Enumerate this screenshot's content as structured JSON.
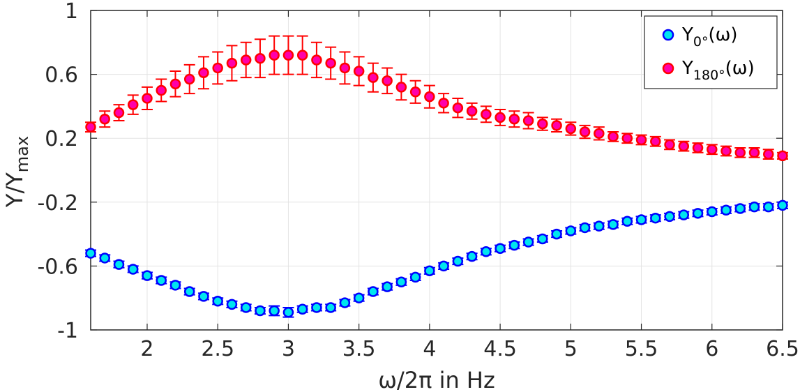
{
  "chart_data": {
    "type": "scatter",
    "xlabel": "ω/2π in Hz",
    "ylabel": "Y/Y",
    "ylabel_sub": "max",
    "xlim": [
      1.6,
      6.5
    ],
    "ylim": [
      -1,
      1
    ],
    "xticks": [
      2,
      2.5,
      3,
      3.5,
      4,
      4.5,
      5,
      5.5,
      6,
      6.5
    ],
    "xtick_labels": [
      "2",
      "2.5",
      "3",
      "3.5",
      "4",
      "4.5",
      "5",
      "5.5",
      "6",
      "6.5"
    ],
    "yticks": [
      -1,
      -0.6,
      -0.2,
      0.2,
      0.6,
      1
    ],
    "ytick_labels": [
      "-1",
      "-0.6",
      "-0.2",
      "0.2",
      "0.6",
      "1"
    ],
    "grid": true,
    "legend_position": "top-right",
    "x": [
      1.6,
      1.7,
      1.8,
      1.9,
      2.0,
      2.1,
      2.2,
      2.3,
      2.4,
      2.5,
      2.6,
      2.7,
      2.8,
      2.9,
      3.0,
      3.1,
      3.2,
      3.3,
      3.4,
      3.5,
      3.6,
      3.7,
      3.8,
      3.9,
      4.0,
      4.1,
      4.2,
      4.3,
      4.4,
      4.5,
      4.6,
      4.7,
      4.8,
      4.9,
      5.0,
      5.1,
      5.2,
      5.3,
      5.4,
      5.5,
      5.6,
      5.7,
      5.8,
      5.9,
      6.0,
      6.1,
      6.2,
      6.3,
      6.4,
      6.5
    ],
    "series": [
      {
        "name": "Y",
        "name_sub": "0°",
        "name_suffix": "(ω)",
        "marker_fill": "#00e5ee",
        "marker_edge": "#0000ff",
        "errorbar_color": "#0000ff",
        "values": [
          -0.52,
          -0.55,
          -0.59,
          -0.62,
          -0.66,
          -0.69,
          -0.72,
          -0.76,
          -0.79,
          -0.82,
          -0.84,
          -0.86,
          -0.88,
          -0.88,
          -0.89,
          -0.87,
          -0.86,
          -0.86,
          -0.83,
          -0.8,
          -0.76,
          -0.73,
          -0.7,
          -0.67,
          -0.63,
          -0.6,
          -0.57,
          -0.54,
          -0.51,
          -0.49,
          -0.47,
          -0.45,
          -0.43,
          -0.4,
          -0.38,
          -0.36,
          -0.35,
          -0.34,
          -0.32,
          -0.31,
          -0.3,
          -0.29,
          -0.28,
          -0.27,
          -0.26,
          -0.25,
          -0.24,
          -0.23,
          -0.23,
          -0.22
        ],
        "errors": [
          0.02,
          0.02,
          0.02,
          0.02,
          0.02,
          0.02,
          0.02,
          0.02,
          0.02,
          0.02,
          0.02,
          0.02,
          0.02,
          0.03,
          0.03,
          0.02,
          0.02,
          0.02,
          0.02,
          0.02,
          0.02,
          0.02,
          0.02,
          0.02,
          0.02,
          0.02,
          0.02,
          0.02,
          0.02,
          0.02,
          0.02,
          0.02,
          0.02,
          0.02,
          0.02,
          0.02,
          0.02,
          0.02,
          0.02,
          0.02,
          0.02,
          0.02,
          0.02,
          0.02,
          0.02,
          0.02,
          0.02,
          0.02,
          0.02,
          0.02
        ]
      },
      {
        "name": "Y",
        "name_sub": "180°",
        "name_suffix": "(ω)",
        "marker_fill": "#ff00aa",
        "marker_edge": "#ff0000",
        "errorbar_color": "#ff0000",
        "values": [
          0.27,
          0.32,
          0.36,
          0.41,
          0.45,
          0.5,
          0.54,
          0.57,
          0.61,
          0.64,
          0.67,
          0.69,
          0.7,
          0.72,
          0.72,
          0.72,
          0.69,
          0.67,
          0.64,
          0.62,
          0.58,
          0.56,
          0.52,
          0.49,
          0.46,
          0.42,
          0.39,
          0.37,
          0.35,
          0.33,
          0.32,
          0.31,
          0.29,
          0.28,
          0.26,
          0.24,
          0.23,
          0.21,
          0.2,
          0.19,
          0.18,
          0.16,
          0.15,
          0.14,
          0.13,
          0.12,
          0.11,
          0.11,
          0.1,
          0.09
        ],
        "errors": [
          0.03,
          0.05,
          0.05,
          0.06,
          0.07,
          0.07,
          0.08,
          0.09,
          0.1,
          0.1,
          0.11,
          0.11,
          0.12,
          0.12,
          0.12,
          0.12,
          0.11,
          0.1,
          0.1,
          0.09,
          0.09,
          0.08,
          0.08,
          0.07,
          0.07,
          0.06,
          0.06,
          0.05,
          0.05,
          0.05,
          0.05,
          0.05,
          0.04,
          0.04,
          0.04,
          0.04,
          0.04,
          0.03,
          0.03,
          0.03,
          0.03,
          0.03,
          0.03,
          0.03,
          0.03,
          0.03,
          0.03,
          0.03,
          0.03,
          0.02
        ]
      }
    ]
  }
}
